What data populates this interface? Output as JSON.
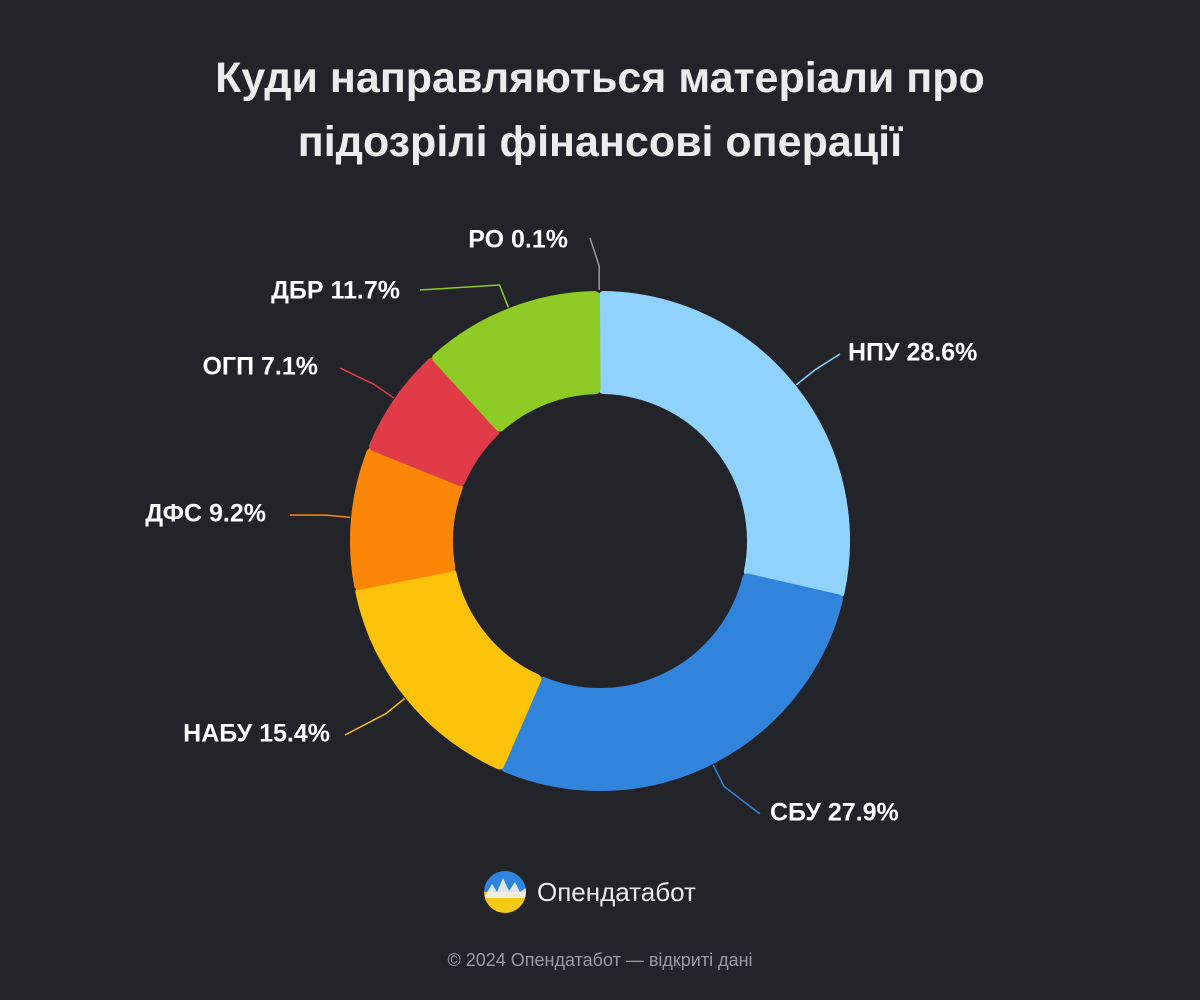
{
  "chart_data": {
    "type": "pie",
    "title_lines": [
      "Куди направляються матеріали про",
      "підозрілі фінансові операції"
    ],
    "unit": "%",
    "slices": [
      {
        "label": "НПУ",
        "value": 28.6,
        "color": "#8fd3fc"
      },
      {
        "label": "СБУ",
        "value": 27.9,
        "color": "#3084dc"
      },
      {
        "label": "НАБУ",
        "value": 15.4,
        "color": "#fdc30b"
      },
      {
        "label": "ДФС",
        "value": 9.2,
        "color": "#fc8608"
      },
      {
        "label": "ОГП",
        "value": 7.1,
        "color": "#e03b46"
      },
      {
        "label": "ДБР",
        "value": 11.7,
        "color": "#8ecb25"
      },
      {
        "label": "РО",
        "value": 0.1,
        "color": "#9a9a9a"
      }
    ]
  },
  "brand": {
    "name": "Опендатабот",
    "logo_icon": "opendatabot-logo-icon"
  },
  "footer": {
    "text": "© 2024 Опендатабот — відкриті дані"
  }
}
